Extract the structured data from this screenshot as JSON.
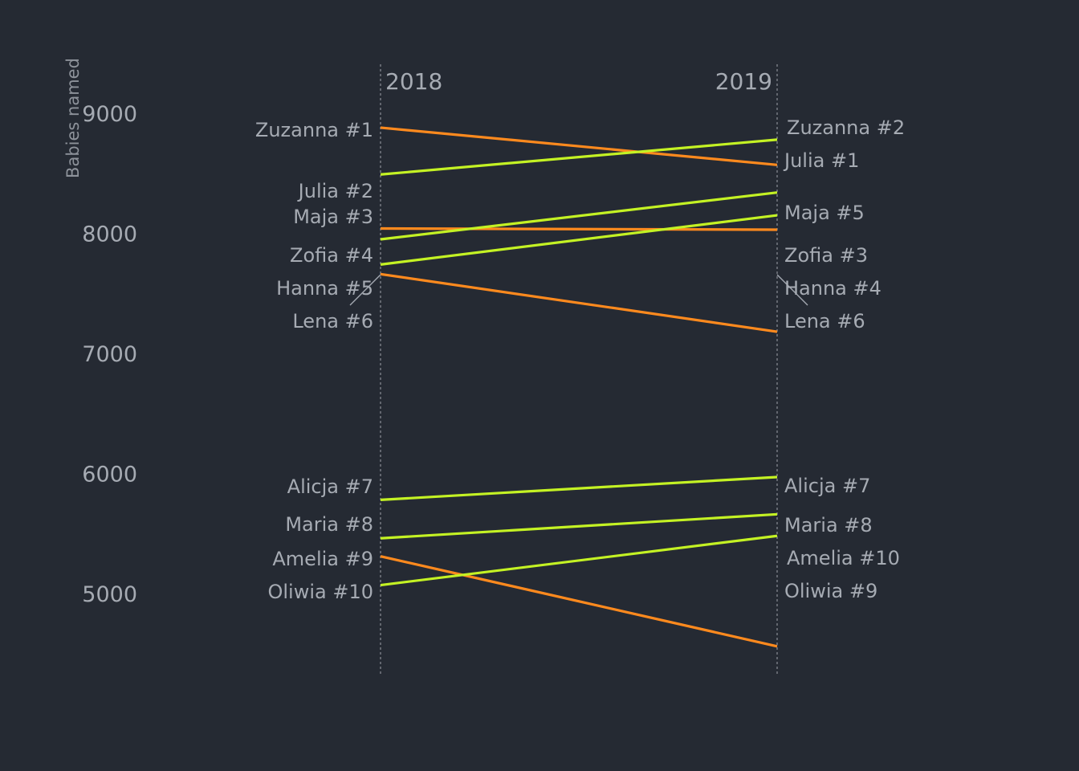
{
  "chart_data": {
    "type": "line",
    "chart_style": "slopegraph",
    "ylabel": "Babies named",
    "x": [
      "2018",
      "2019"
    ],
    "y_ticks": [
      5000,
      6000,
      7000,
      8000,
      9000
    ],
    "ylim": [
      4400,
      9400
    ],
    "colors": {
      "increase": "#c4f224",
      "decrease": "#ff8a1e",
      "background": "#252a33"
    },
    "series": [
      {
        "name": "Zuzanna",
        "values": [
          8880,
          8570
        ],
        "labels": [
          "Zuzanna #1",
          "Zuzanna #2"
        ],
        "trend": "decrease"
      },
      {
        "name": "Julia",
        "values": [
          8490,
          8780
        ],
        "labels": [
          "Julia #2",
          "Julia #1"
        ],
        "trend": "increase"
      },
      {
        "name": "Maja",
        "values": [
          8040,
          8030
        ],
        "labels": [
          "Maja #3",
          "Maja #5"
        ],
        "trend": "decrease"
      },
      {
        "name": "Zofia",
        "values": [
          7950,
          8340
        ],
        "labels": [
          "Zofia #4",
          "Zofia #3"
        ],
        "trend": "increase"
      },
      {
        "name": "Hanna",
        "values": [
          7740,
          8150
        ],
        "labels": [
          "Hanna #5",
          "Hanna #4"
        ],
        "trend": "increase"
      },
      {
        "name": "Lena",
        "values": [
          7660,
          7180
        ],
        "labels": [
          "Lena #6",
          "Lena #6"
        ],
        "trend": "decrease"
      },
      {
        "name": "Alicja",
        "values": [
          5780,
          5970
        ],
        "labels": [
          "Alicja #7",
          "Alicja #7"
        ],
        "trend": "increase"
      },
      {
        "name": "Maria",
        "values": [
          5460,
          5660
        ],
        "labels": [
          "Maria #8",
          "Maria #8"
        ],
        "trend": "increase"
      },
      {
        "name": "Amelia",
        "values": [
          5310,
          4560
        ],
        "labels": [
          "Amelia #9",
          "Amelia #10"
        ],
        "trend": "decrease"
      },
      {
        "name": "Oliwia",
        "values": [
          5070,
          5480
        ],
        "labels": [
          "Oliwia #10",
          "Oliwia #9"
        ],
        "trend": "increase"
      }
    ]
  }
}
